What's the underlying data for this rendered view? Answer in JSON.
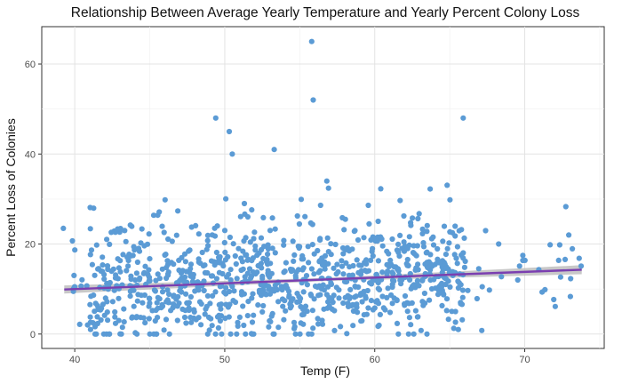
{
  "chart_data": {
    "type": "scatter",
    "title": "Relationship Between Average Yearly Temperature and Yearly Percent Colony Loss",
    "xlabel": "Temp (F)",
    "ylabel": "Percent Loss of Colonies",
    "xlim": [
      37.8,
      75.3
    ],
    "ylim": [
      -3.2,
      68.3
    ],
    "x_ticks": [
      40,
      50,
      60,
      70
    ],
    "y_ticks": [
      0,
      20,
      40,
      60
    ],
    "grid": true,
    "legend": "none",
    "point_color": "#5b9bd5",
    "trend_line": {
      "color": "#7b3fb0",
      "band_color": "#b5b5b5",
      "start": [
        39.3,
        9.9
      ],
      "end": [
        73.8,
        14.3
      ],
      "band_halfwidth": [
        0.9,
        0.35,
        1.0
      ]
    },
    "points_note_outliers": [
      [
        55.8,
        65
      ],
      [
        55.9,
        52
      ],
      [
        49.4,
        48
      ],
      [
        65.9,
        48
      ],
      [
        50.3,
        45
      ],
      [
        53.3,
        41
      ],
      [
        50.5,
        40
      ]
    ],
    "points_seed": 7,
    "points_count": 1000
  }
}
